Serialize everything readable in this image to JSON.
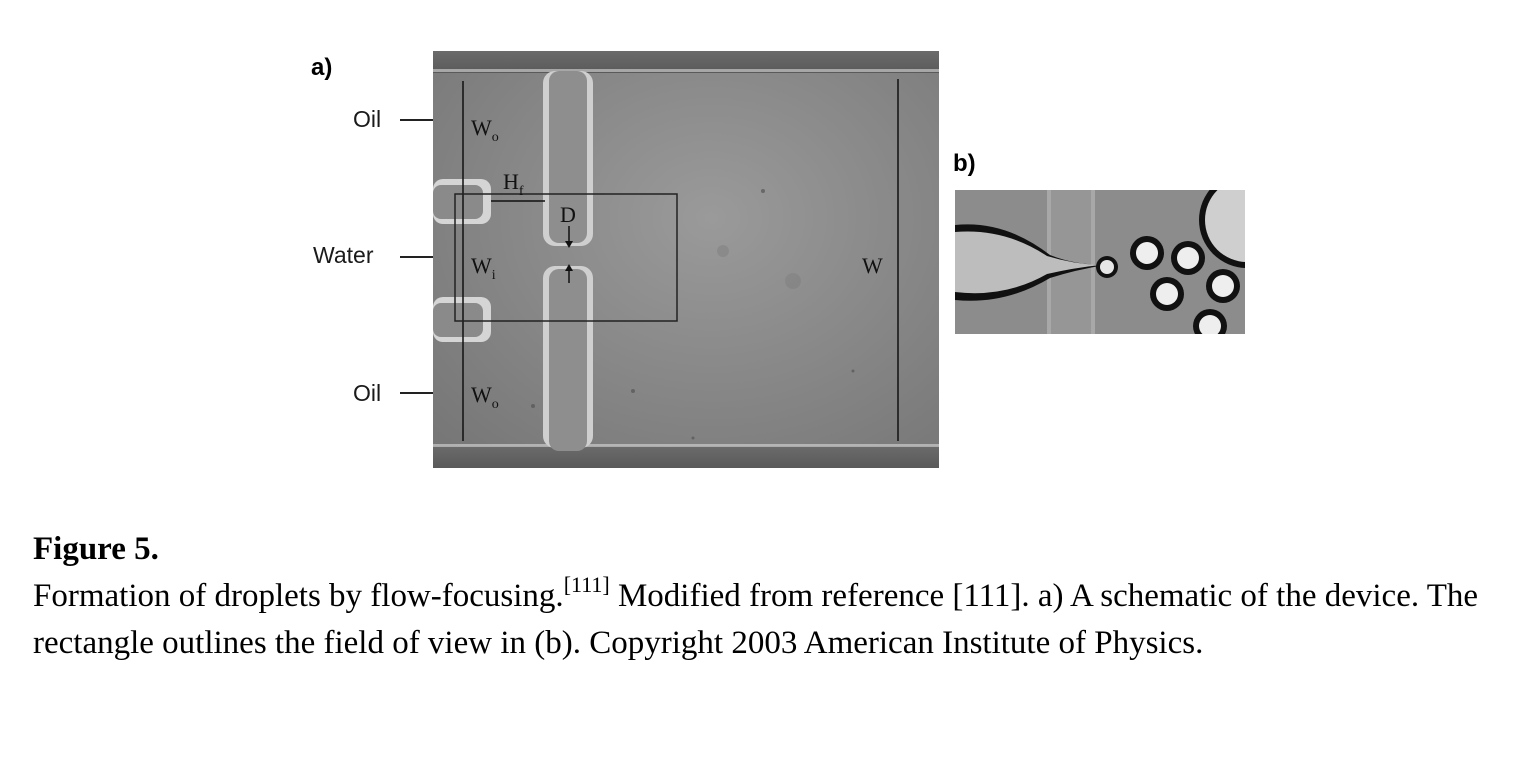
{
  "figure": {
    "panel_a_label": "a)",
    "panel_b_label": "b)",
    "inlet_labels": {
      "oil_top": "Oil",
      "water": "Water",
      "oil_bottom": "Oil"
    },
    "dimension_labels": {
      "wo_top": "W",
      "wo_top_sub": "o",
      "hf": "H",
      "hf_sub": "f",
      "d": "D",
      "wi": "W",
      "wi_sub": "i",
      "wo_bottom": "W",
      "wo_bottom_sub": "o",
      "w": "W"
    }
  },
  "caption": {
    "title": "Figure 5.",
    "text_1": "Formation of droplets by flow-focusing.",
    "ref_sup": "[111]",
    "text_2": " Modified from reference [111]. a) A schematic of the device. The rectangle outlines the field of view in (b). Copyright 2003 American Institute of Physics."
  }
}
